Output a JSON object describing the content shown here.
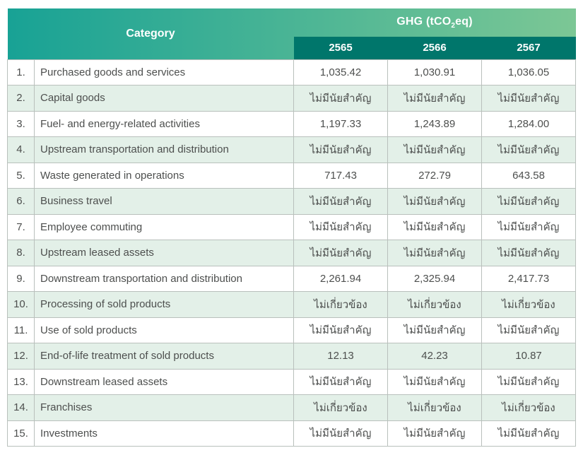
{
  "colors": {
    "header_gradient_left": "#18a295",
    "header_gradient_right": "#7cc795",
    "year_band": "#00766b",
    "alt_row_background": "#e3f0e8",
    "table_border": "#b9c0bc",
    "body_text": "#4d4f4e",
    "header_text": "#ffffff"
  },
  "chart_data": {
    "type": "table",
    "title": "GHG (tCO2eq) by Category, years 2565-2567",
    "header": {
      "category_label": "Category",
      "ghg_prefix": "GHG (tCO",
      "ghg_sub": "2",
      "ghg_suffix": "eq)",
      "years": [
        "2565",
        "2566",
        "2567"
      ]
    },
    "not_significant_label": "ไม่มีนัยสำคัญ",
    "not_relevant_label": "ไม่เกี่ยวข้อง",
    "rows": [
      {
        "no": "1.",
        "category": "Purchased goods and services",
        "values": [
          "1,035.42",
          "1,030.91",
          "1,036.05"
        ]
      },
      {
        "no": "2.",
        "category": "Capital goods",
        "values": [
          "ไม่มีนัยสำคัญ",
          "ไม่มีนัยสำคัญ",
          "ไม่มีนัยสำคัญ"
        ]
      },
      {
        "no": "3.",
        "category": "Fuel- and energy-related activities",
        "values": [
          "1,197.33",
          "1,243.89",
          "1,284.00"
        ]
      },
      {
        "no": "4.",
        "category": "Upstream transportation and distribution",
        "values": [
          "ไม่มีนัยสำคัญ",
          "ไม่มีนัยสำคัญ",
          "ไม่มีนัยสำคัญ"
        ]
      },
      {
        "no": "5.",
        "category": "Waste generated in operations",
        "values": [
          "717.43",
          "272.79",
          "643.58"
        ]
      },
      {
        "no": "6.",
        "category": "Business travel",
        "values": [
          "ไม่มีนัยสำคัญ",
          "ไม่มีนัยสำคัญ",
          "ไม่มีนัยสำคัญ"
        ]
      },
      {
        "no": "7.",
        "category": "Employee commuting",
        "values": [
          "ไม่มีนัยสำคัญ",
          "ไม่มีนัยสำคัญ",
          "ไม่มีนัยสำคัญ"
        ]
      },
      {
        "no": "8.",
        "category": "Upstream leased assets",
        "values": [
          "ไม่มีนัยสำคัญ",
          "ไม่มีนัยสำคัญ",
          "ไม่มีนัยสำคัญ"
        ]
      },
      {
        "no": "9.",
        "category": "Downstream transportation and distribution",
        "values": [
          "2,261.94",
          "2,325.94",
          "2,417.73"
        ]
      },
      {
        "no": "10.",
        "category": "Processing of sold products",
        "values": [
          "ไม่เกี่ยวข้อง",
          "ไม่เกี่ยวข้อง",
          "ไม่เกี่ยวข้อง"
        ]
      },
      {
        "no": "11.",
        "category": "Use of sold products",
        "values": [
          "ไม่มีนัยสำคัญ",
          "ไม่มีนัยสำคัญ",
          "ไม่มีนัยสำคัญ"
        ]
      },
      {
        "no": "12.",
        "category": "End-of-life treatment of sold products",
        "values": [
          "12.13",
          "42.23",
          "10.87"
        ]
      },
      {
        "no": "13.",
        "category": "Downstream leased assets",
        "values": [
          "ไม่มีนัยสำคัญ",
          "ไม่มีนัยสำคัญ",
          "ไม่มีนัยสำคัญ"
        ]
      },
      {
        "no": "14.",
        "category": "Franchises",
        "values": [
          "ไม่เกี่ยวข้อง",
          "ไม่เกี่ยวข้อง",
          "ไม่เกี่ยวข้อง"
        ]
      },
      {
        "no": "15.",
        "category": "Investments",
        "values": [
          "ไม่มีนัยสำคัญ",
          "ไม่มีนัยสำคัญ",
          "ไม่มีนัยสำคัญ"
        ]
      }
    ]
  }
}
